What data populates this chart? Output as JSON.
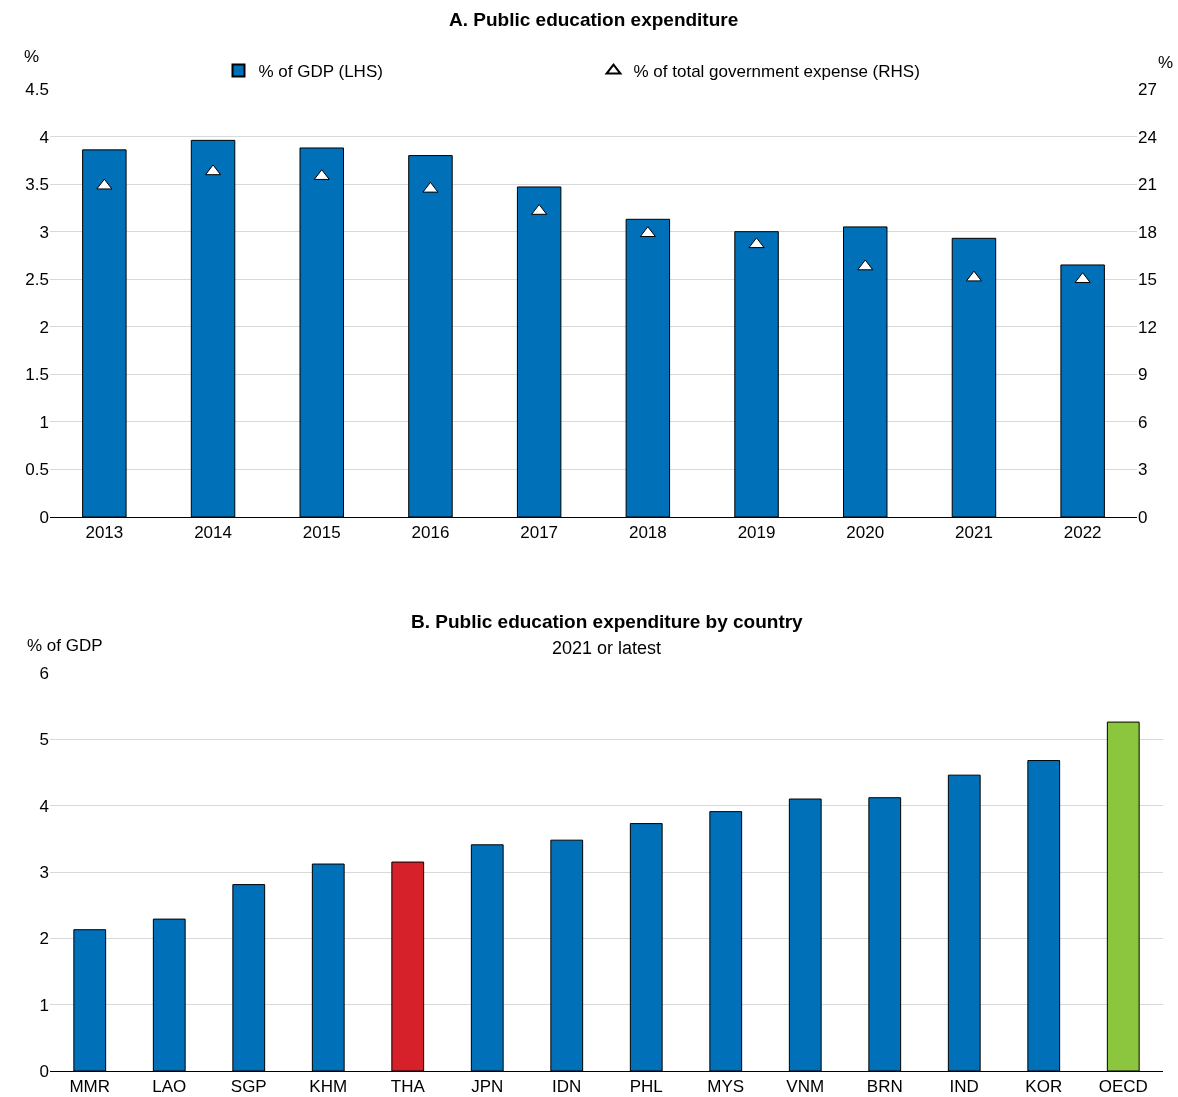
{
  "chart_data": [
    {
      "type": "bar",
      "title": "A. Public education expenditure",
      "ylabel": "%",
      "y2label": "%",
      "categories": [
        "2013",
        "2014",
        "2015",
        "2016",
        "2017",
        "2018",
        "2019",
        "2020",
        "2021",
        "2022"
      ],
      "series": [
        {
          "name": "% of GDP (LHS)",
          "type": "bar",
          "color": "#0070b8",
          "values": [
            3.86,
            3.96,
            3.88,
            3.8,
            3.47,
            3.13,
            3.0,
            3.05,
            2.93,
            2.65
          ]
        },
        {
          "name": "% of total government expense (RHS)",
          "type": "scatter",
          "axis": "y2",
          "marker": "triangle",
          "color": "#ffffff",
          "values": [
            20.9,
            21.8,
            21.5,
            20.7,
            19.3,
            17.9,
            17.2,
            15.8,
            15.1,
            15.0
          ]
        }
      ],
      "ylim": [
        0,
        4.5
      ],
      "yticks": [
        0,
        0.5,
        1,
        1.5,
        2,
        2.5,
        3,
        3.5,
        4,
        4.5
      ],
      "y2lim": [
        0,
        27
      ],
      "y2ticks": [
        0,
        3,
        6,
        9,
        12,
        15,
        18,
        21,
        24,
        27
      ],
      "grid": "y",
      "legend": "top"
    },
    {
      "type": "bar",
      "title": "B. Public education expenditure by country",
      "subtitle": "2021 or latest",
      "ylabel": "% of GDP",
      "categories": [
        "MMR",
        "LAO",
        "SGP",
        "KHM",
        "THA",
        "JPN",
        "IDN",
        "PHL",
        "MYS",
        "VNM",
        "BRN",
        "IND",
        "KOR",
        "OECD"
      ],
      "values": [
        2.13,
        2.29,
        2.81,
        3.12,
        3.15,
        3.41,
        3.48,
        3.73,
        3.91,
        4.1,
        4.12,
        4.46,
        4.68,
        5.26
      ],
      "colors": [
        "#0070b8",
        "#0070b8",
        "#0070b8",
        "#0070b8",
        "#d7212a",
        "#0070b8",
        "#0070b8",
        "#0070b8",
        "#0070b8",
        "#0070b8",
        "#0070b8",
        "#0070b8",
        "#0070b8",
        "#8cc63f"
      ],
      "ylim": [
        0,
        6
      ],
      "yticks": [
        0,
        1,
        2,
        3,
        4,
        5,
        6
      ],
      "grid": "y",
      "legend": false
    }
  ]
}
